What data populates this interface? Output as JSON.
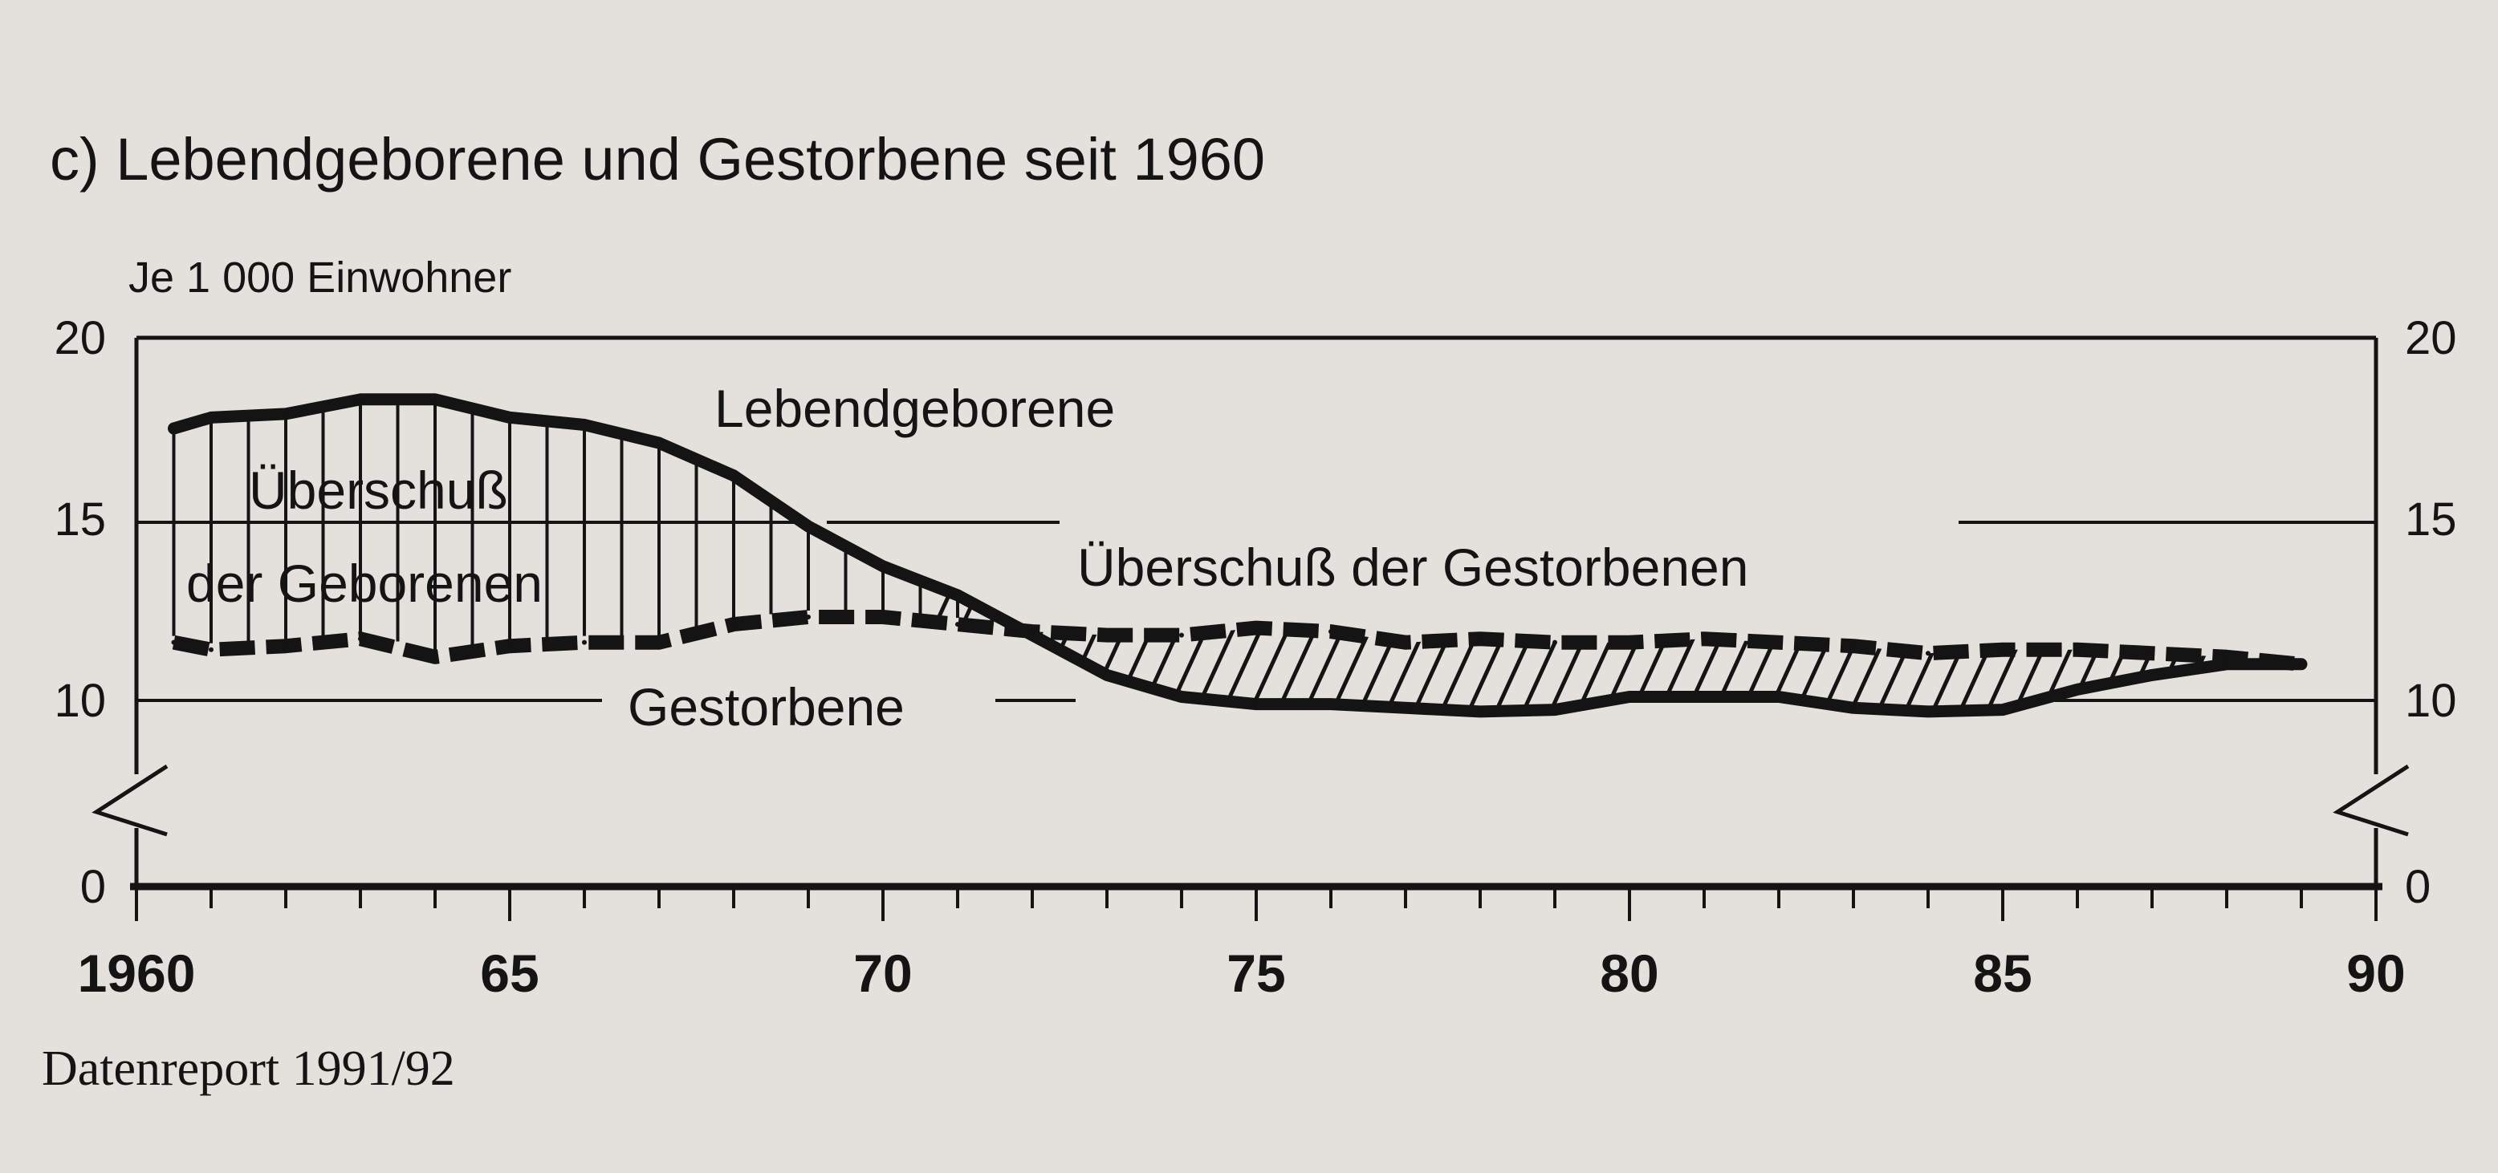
{
  "chart_data": {
    "type": "area",
    "title": "c) Lebendgeborene und Gestorbene seit 1960",
    "ylabel": "Je 1 000 Einwohner",
    "source": "Datenreport 1991/92",
    "ylim": [
      0,
      20
    ],
    "xlim": [
      1960,
      1990
    ],
    "y_ticks": [
      0,
      10,
      15,
      20
    ],
    "y_axis_break": true,
    "x_ticks": [
      1960,
      1965,
      1970,
      1975,
      1980,
      1985,
      1990
    ],
    "x_tick_labels": [
      "1960",
      "65",
      "70",
      "75",
      "80",
      "85",
      "90"
    ],
    "grid": false,
    "x": [
      1960.5,
      1961,
      1962,
      1963,
      1964,
      1965,
      1966,
      1967,
      1968,
      1969,
      1970,
      1971,
      1972,
      1973,
      1974,
      1975,
      1976,
      1977,
      1978,
      1979,
      1980,
      1981,
      1982,
      1983,
      1984,
      1985,
      1986,
      1987,
      1988,
      1989
    ],
    "series": [
      {
        "name": "Lebendgeborene",
        "style": "solid",
        "values": [
          17.5,
          17.8,
          17.9,
          18.3,
          18.3,
          17.8,
          17.6,
          17.1,
          16.2,
          14.8,
          13.7,
          12.9,
          11.8,
          10.7,
          10.1,
          9.8,
          9.8,
          9.6,
          9.4,
          9.5,
          10.1,
          10.1,
          10.1,
          9.6,
          9.4,
          9.5,
          10.3,
          10.7,
          11.0,
          11.0
        ]
      },
      {
        "name": "Gestorbene",
        "style": "dashed",
        "values": [
          11.6,
          11.4,
          11.5,
          11.7,
          11.2,
          11.5,
          11.6,
          11.6,
          12.1,
          12.3,
          12.3,
          12.1,
          11.9,
          11.8,
          11.8,
          12.0,
          11.9,
          11.6,
          11.7,
          11.6,
          11.6,
          11.7,
          11.6,
          11.5,
          11.3,
          11.4,
          11.4,
          11.3,
          11.2,
          11.0
        ]
      }
    ],
    "annotations": {
      "births_label": "Lebendgeborene",
      "deaths_label": "Gestorbene",
      "birth_surplus_line1": "Überschuß",
      "birth_surplus_line2": "der Geborenen",
      "death_surplus": "Überschuß der Gestorbenen"
    }
  }
}
